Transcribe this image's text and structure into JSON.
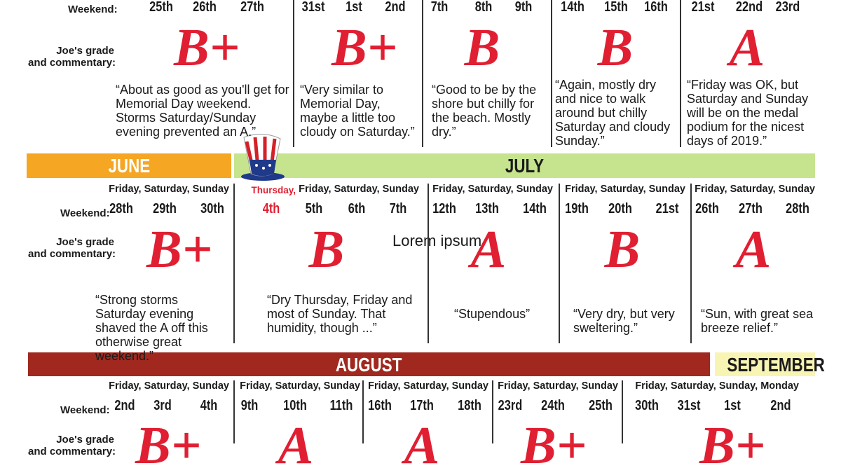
{
  "labels": {
    "weekend": "Weekend:",
    "grade_line1": "Joe's grade",
    "grade_line2": "and commentary:"
  },
  "overlay": "Lorem ipsum",
  "months": {
    "june": "JUNE",
    "july": "JULY",
    "august": "AUGUST",
    "september": "SEPTEMBER"
  },
  "rows": [
    {
      "weekends": [
        {
          "dates": [
            "25th",
            "26th",
            "27th"
          ],
          "grade": "B+",
          "comment": "“About as good as you'll get for Memorial Day weekend. Storms Saturday/Sunday evening prevented an A.”"
        },
        {
          "dates": [
            "31st",
            "1st",
            "2nd"
          ],
          "grade": "B+",
          "comment": "“Very similar to Memorial Day, maybe a little too cloudy on Saturday.”"
        },
        {
          "dates": [
            "7th",
            "8th",
            "9th"
          ],
          "grade": "B",
          "comment": "“Good to be by the shore but chilly for the beach. Mostly dry.”"
        },
        {
          "dates": [
            "14th",
            "15th",
            "16th"
          ],
          "grade": "B",
          "comment": "“Again, mostly dry and nice to walk around but chilly Saturday and cloudy Sunday.”"
        },
        {
          "dates": [
            "21st",
            "22nd",
            "23rd"
          ],
          "grade": "A",
          "comment": "“Friday was OK, but Saturday and Sunday will be on the medal podium for the nicest days of 2019.”"
        }
      ]
    },
    {
      "weekends": [
        {
          "days": "Friday, Saturday, Sunday",
          "dates": [
            "28th",
            "29th",
            "30th"
          ],
          "grade": "B+",
          "comment": "“Strong storms Saturday evening shaved the A off this otherwise great weekend.”"
        },
        {
          "holiday": "Thursday,",
          "days": "Friday, Saturday, Sunday",
          "dates": [
            "4th",
            "5th",
            "6th",
            "7th"
          ],
          "grade": "B",
          "comment": "“Dry Thursday, Friday and most of Sunday. That humidity, though ...”"
        },
        {
          "days": "Friday, Saturday, Sunday",
          "dates": [
            "12th",
            "13th",
            "14th"
          ],
          "grade": "A",
          "comment": "“Stupendous”"
        },
        {
          "days": "Friday, Saturday, Sunday",
          "dates": [
            "19th",
            "20th",
            "21st"
          ],
          "grade": "B",
          "comment": "“Very dry, but very sweltering.”"
        },
        {
          "days": "Friday, Saturday, Sunday",
          "dates": [
            "26th",
            "27th",
            "28th"
          ],
          "grade": "A",
          "comment": "“Sun, with great sea breeze relief.”"
        }
      ]
    },
    {
      "weekends": [
        {
          "days": "Friday, Saturday, Sunday",
          "dates": [
            "2nd",
            "3rd",
            "4th"
          ],
          "grade": "B+"
        },
        {
          "days": "Friday, Saturday, Sunday",
          "dates": [
            "9th",
            "10th",
            "11th"
          ],
          "grade": "A"
        },
        {
          "days": "Friday, Saturday, Sunday",
          "dates": [
            "16th",
            "17th",
            "18th"
          ],
          "grade": "A"
        },
        {
          "days": "Friday, Saturday, Sunday",
          "dates": [
            "23rd",
            "24th",
            "25th"
          ],
          "grade": "B+"
        },
        {
          "days": "Friday, Saturday, Sunday, Monday",
          "dates": [
            "30th",
            "31st",
            "1st",
            "2nd"
          ],
          "grade": "B+"
        }
      ]
    }
  ]
}
